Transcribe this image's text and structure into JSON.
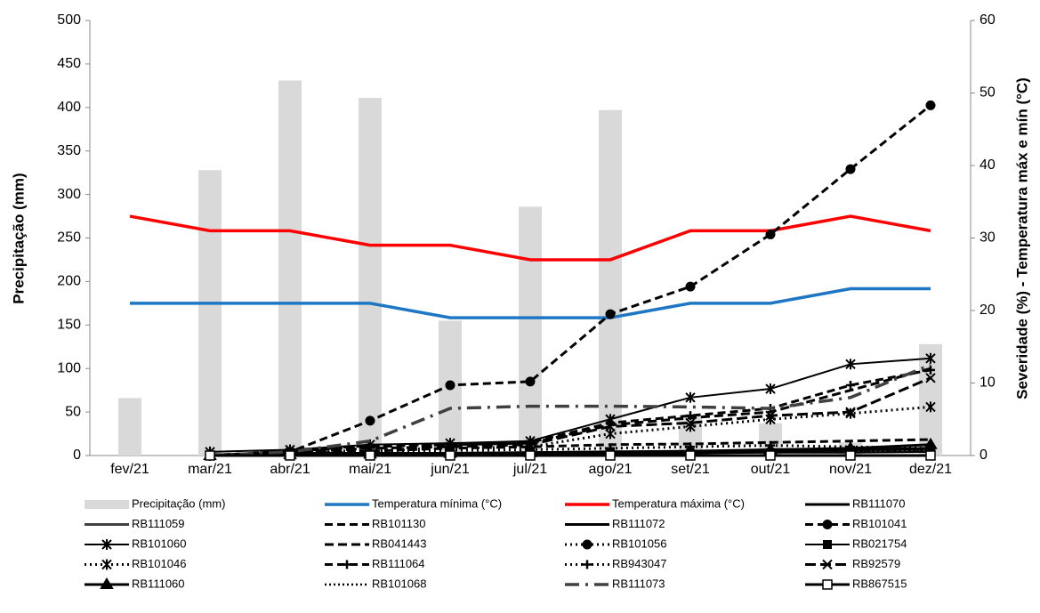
{
  "chart_data": {
    "type": "bar-line",
    "y_label": "Precipitação (mm)",
    "y2_label": "Severidade (%)  - Temperatura máx e mín (°C)",
    "categories": [
      "fev/21",
      "mar/21",
      "abr/21",
      "mai/21",
      "jun/21",
      "jul/21",
      "ago/21",
      "set/21",
      "out/21",
      "nov/21",
      "dez/21"
    ],
    "ylim": [
      0,
      500
    ],
    "yticks": [
      0,
      50,
      100,
      150,
      200,
      250,
      300,
      350,
      400,
      450,
      500
    ],
    "y2lim": [
      0,
      60
    ],
    "y2ticks": [
      0,
      10,
      20,
      30,
      40,
      50,
      60
    ],
    "series": [
      {
        "name": "Precipitação (mm)",
        "kind": "bar",
        "color": "#d9d9d9",
        "values": [
          66,
          328,
          431,
          411,
          155,
          286,
          397,
          45,
          37,
          15,
          128
        ]
      },
      {
        "name": "Temperatura mínima (°C)",
        "kind": "line",
        "axis": "y2",
        "color": "#1f77c4",
        "width": 3.5,
        "dash": "none",
        "marker": "none",
        "values": [
          21,
          21,
          21,
          21,
          19,
          19,
          19,
          21,
          21,
          23,
          23
        ]
      },
      {
        "name": "Temperatura máxima (°C)",
        "kind": "line",
        "axis": "y2",
        "color": "#ff0000",
        "width": 3.5,
        "dash": "none",
        "marker": "none",
        "values": [
          33,
          31,
          31,
          29,
          29,
          27,
          27,
          31,
          31,
          33,
          31
        ]
      },
      {
        "name": "RB111070",
        "kind": "line",
        "axis": "y2",
        "color": "#000000",
        "width": 3,
        "dash": "none",
        "marker": "none",
        "values": [
          null,
          0,
          0,
          0.2,
          0.3,
          0.3,
          0.4,
          0.4,
          0.5,
          0.6,
          0.8
        ]
      },
      {
        "name": "RB111059",
        "kind": "line",
        "axis": "y2",
        "color": "#404040",
        "width": 3,
        "dash": "none",
        "marker": "none",
        "values": [
          null,
          0,
          0.1,
          0.2,
          0.3,
          0.3,
          0.4,
          0.4,
          0.5,
          0.5,
          0.6
        ]
      },
      {
        "name": "RB101130",
        "kind": "line",
        "axis": "y2",
        "color": "#000000",
        "width": 3,
        "dash": "9,5",
        "marker": "none",
        "values": [
          null,
          0,
          0.2,
          0.6,
          1,
          1.2,
          1.5,
          1.6,
          1.8,
          2,
          2.2
        ]
      },
      {
        "name": "RB111072",
        "kind": "line",
        "axis": "y2",
        "color": "#000000",
        "width": 3,
        "dash": "none",
        "marker": "none",
        "values": [
          null,
          0.1,
          0.3,
          0.3,
          0.3,
          0.4,
          0.5,
          0.5,
          0.6,
          0.8,
          1
        ]
      },
      {
        "name": "RB101041",
        "kind": "line",
        "axis": "y2",
        "color": "#000000",
        "width": 3,
        "dash": "9,5",
        "marker": "circle",
        "values": [
          null,
          0,
          0.5,
          4.8,
          9.7,
          10.2,
          19.5,
          23.3,
          30.5,
          39.5,
          48.3
        ]
      },
      {
        "name": "RB101060",
        "kind": "line",
        "axis": "y2",
        "color": "#000000",
        "width": 2,
        "dash": "none",
        "marker": "star",
        "values": [
          null,
          0.5,
          0.8,
          1.5,
          1.7,
          2,
          5,
          8,
          9.2,
          12.6,
          13.4
        ]
      },
      {
        "name": "RB041443",
        "kind": "line",
        "axis": "y2",
        "color": "#000000",
        "width": 3,
        "dash": "10,5",
        "marker": "none",
        "values": [
          null,
          0,
          0.6,
          1.4,
          1.5,
          1.7,
          4.2,
          5.2,
          6,
          9,
          12
        ]
      },
      {
        "name": "RB101056",
        "kind": "line",
        "axis": "y2",
        "color": "#000000",
        "width": 3,
        "dash": "2,4",
        "marker": "circle",
        "values": [
          null,
          0,
          0.1,
          0.2,
          0.3,
          0.3,
          0.4,
          0.5,
          0.5,
          0.6,
          0.7
        ]
      },
      {
        "name": "RB021754",
        "kind": "line",
        "axis": "y2",
        "color": "#000000",
        "width": 2,
        "dash": "none",
        "marker": "square",
        "values": [
          null,
          0,
          0.1,
          0.1,
          0.2,
          0.2,
          0.3,
          0.3,
          0.4,
          0.4,
          0.5
        ]
      },
      {
        "name": "RB101046",
        "kind": "line",
        "axis": "y2",
        "color": "#000000",
        "width": 3,
        "dash": "2,4",
        "marker": "star",
        "values": [
          null,
          0,
          0.3,
          0.8,
          1,
          1.2,
          3,
          4,
          5,
          5.8,
          6.7
        ]
      },
      {
        "name": "RB111064",
        "kind": "line",
        "axis": "y2",
        "color": "#000000",
        "width": 3,
        "dash": "9,5",
        "marker": "plus",
        "values": [
          null,
          0,
          0.6,
          1.2,
          1.5,
          1.8,
          4.5,
          5.5,
          6.5,
          9.7,
          11.8
        ]
      },
      {
        "name": "RB943047",
        "kind": "line",
        "axis": "y2",
        "color": "#000000",
        "width": 3,
        "dash": "2,4",
        "marker": "plus",
        "values": [
          null,
          0,
          0.2,
          0.5,
          0.7,
          0.8,
          1,
          1.2,
          1.4,
          1.2,
          1
        ]
      },
      {
        "name": "RB92579",
        "kind": "line",
        "axis": "y2",
        "color": "#000000",
        "width": 3,
        "dash": "12,5",
        "marker": "x",
        "values": [
          null,
          0,
          0.4,
          1,
          1.2,
          1.5,
          4,
          4.5,
          5.5,
          6,
          10.7
        ]
      },
      {
        "name": "RB111060",
        "kind": "line",
        "axis": "y2",
        "color": "#000000",
        "width": 3,
        "dash": "none",
        "marker": "triangle",
        "values": [
          null,
          0,
          0.1,
          0.2,
          0.3,
          0.4,
          0.5,
          0.6,
          0.8,
          1,
          1.5
        ]
      },
      {
        "name": "RB101068",
        "kind": "line",
        "axis": "y2",
        "color": "#000000",
        "width": 2.5,
        "dash": "2,3",
        "marker": "none",
        "values": [
          null,
          0,
          0.1,
          0.1,
          0.2,
          0.2,
          0.3,
          0.4,
          0.5,
          0.6,
          0.8
        ]
      },
      {
        "name": "RB111073",
        "kind": "line",
        "axis": "y2",
        "color": "#404040",
        "width": 3.5,
        "dash": "16,7,3,7",
        "marker": "none",
        "values": [
          null,
          0,
          0.5,
          2,
          6.5,
          6.8,
          6.8,
          6.7,
          6.5,
          8,
          12.5
        ]
      },
      {
        "name": "RB867515",
        "kind": "line",
        "axis": "y2",
        "color": "#000000",
        "width": 3,
        "dash": "none",
        "marker": "hollow-square",
        "values": [
          null,
          0,
          0,
          0,
          0,
          0,
          0,
          0,
          0,
          0,
          0
        ]
      }
    ]
  }
}
